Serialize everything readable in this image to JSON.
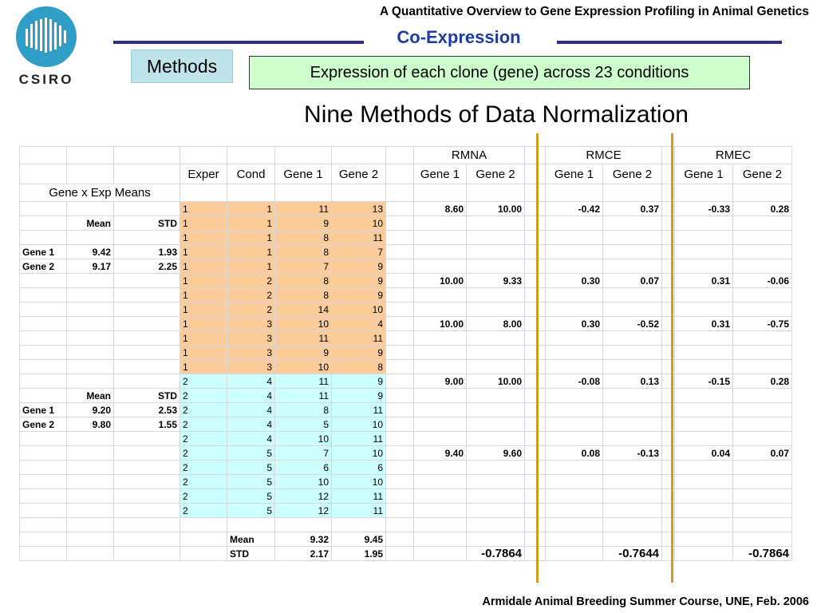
{
  "header": {
    "title": "A Quantitative Overview to Gene Expression Profiling in Animal Genetics",
    "section": "Co-Expression",
    "logo_text": "CSIRO"
  },
  "methods_label": "Methods",
  "description": "Expression of each clone (gene) across 23 conditions",
  "main_title": "Nine Methods of Data Normalization",
  "footer": "Armidale Animal Breeding Summer Course, UNE, Feb. 2006",
  "colors": {
    "accent_blue": "#1f3aa6",
    "orange_fill": "#fbcc99",
    "cyan_fill": "#ccffff",
    "divider": "#d49a1a",
    "green_box": "#ccffcc"
  },
  "table": {
    "group_headers": [
      "RMNA",
      "RMCE",
      "RMEC"
    ],
    "columns": [
      "Exper",
      "Cond",
      "Gene 1",
      "Gene 2",
      "Gene 1",
      "Gene 2",
      "Gene 1",
      "Gene 2",
      "Gene 1",
      "Gene 2"
    ],
    "means_title": "Gene x Exp Means",
    "mean_label": "Mean",
    "std_label": "STD",
    "gene1_label": "Gene 1",
    "gene2_label": "Gene 2",
    "exp1_stats": {
      "gene1_mean": "9.42",
      "gene1_std": "1.93",
      "gene2_mean": "9.17",
      "gene2_std": "2.25"
    },
    "exp2_stats": {
      "gene1_mean": "9.20",
      "gene1_std": "2.53",
      "gene2_mean": "9.80",
      "gene2_std": "1.55"
    },
    "rows": [
      [
        "1",
        "1",
        "11",
        "13"
      ],
      [
        "1",
        "1",
        "9",
        "10"
      ],
      [
        "1",
        "1",
        "8",
        "11"
      ],
      [
        "1",
        "1",
        "8",
        "7"
      ],
      [
        "1",
        "1",
        "7",
        "9"
      ],
      [
        "1",
        "2",
        "8",
        "9"
      ],
      [
        "1",
        "2",
        "8",
        "9"
      ],
      [
        "1",
        "2",
        "14",
        "10"
      ],
      [
        "1",
        "3",
        "10",
        "4"
      ],
      [
        "1",
        "3",
        "11",
        "11"
      ],
      [
        "1",
        "3",
        "9",
        "9"
      ],
      [
        "1",
        "3",
        "10",
        "8"
      ],
      [
        "2",
        "4",
        "11",
        "9"
      ],
      [
        "2",
        "4",
        "11",
        "9"
      ],
      [
        "2",
        "4",
        "8",
        "11"
      ],
      [
        "2",
        "4",
        "5",
        "10"
      ],
      [
        "2",
        "4",
        "10",
        "11"
      ],
      [
        "2",
        "5",
        "7",
        "10"
      ],
      [
        "2",
        "5",
        "6",
        "6"
      ],
      [
        "2",
        "5",
        "10",
        "10"
      ],
      [
        "2",
        "5",
        "12",
        "11"
      ],
      [
        "2",
        "5",
        "12",
        "11"
      ]
    ],
    "norm": {
      "cond1": [
        "8.60",
        "10.00",
        "-0.42",
        "0.37",
        "-0.33",
        "0.28"
      ],
      "cond2": [
        "10.00",
        "9.33",
        "0.30",
        "0.07",
        "0.31",
        "-0.06"
      ],
      "cond3": [
        "10.00",
        "8.00",
        "0.30",
        "-0.52",
        "0.31",
        "-0.75"
      ],
      "cond4": [
        "9.00",
        "10.00",
        "-0.08",
        "0.13",
        "-0.15",
        "0.28"
      ],
      "cond5": [
        "9.40",
        "9.60",
        "0.08",
        "-0.13",
        "0.04",
        "0.07"
      ]
    },
    "summary": {
      "mean_label": "Mean",
      "mean_g1": "9.32",
      "mean_g2": "9.45",
      "std_label": "STD",
      "std_g1": "2.17",
      "std_g2": "1.95",
      "corr": [
        "-0.7864",
        "-0.7644",
        "-0.7864"
      ]
    }
  }
}
